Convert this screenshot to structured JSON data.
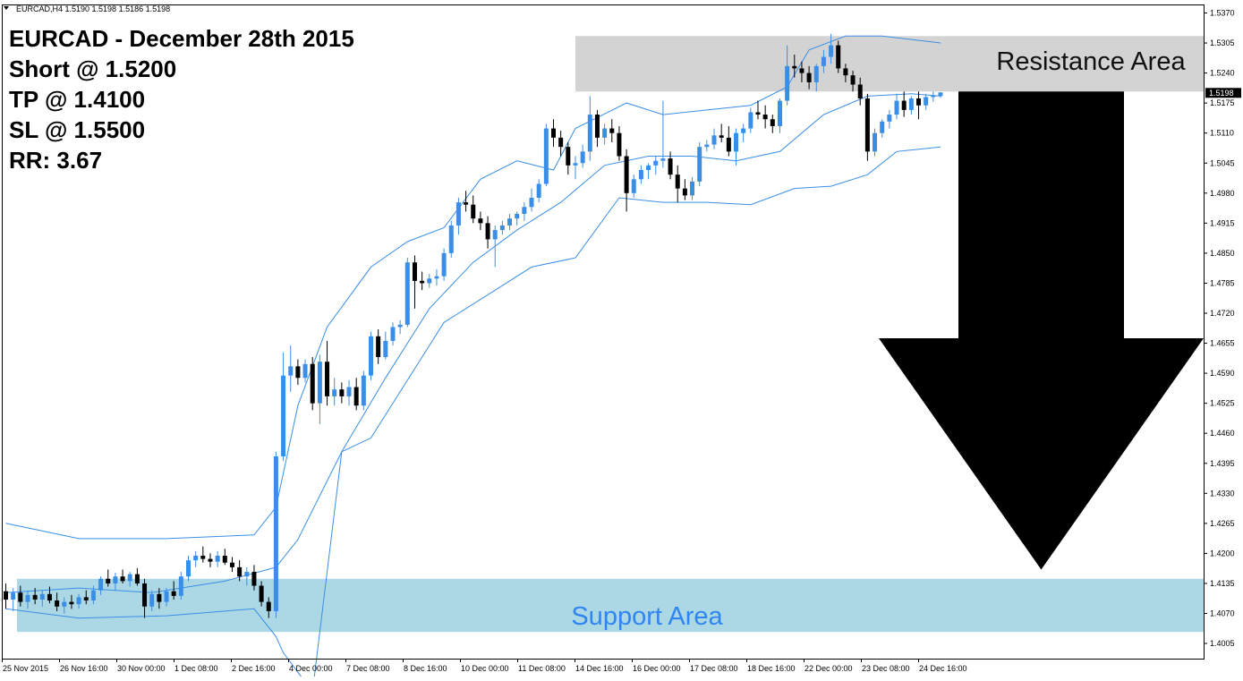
{
  "header": {
    "symbol_line": "EURCAD,H4  1.5190 1.5198 1.5186 1.5198",
    "dropdown_icon": "triangle-down-icon"
  },
  "annotation": {
    "lines": [
      "EURCAD - December 28th 2015",
      "Short @ 1.5200",
      "TP @ 1.4100",
      "SL @ 1.5500",
      "RR: 3.67"
    ]
  },
  "zones": {
    "resistance": {
      "label": "Resistance Area",
      "from": 1.52,
      "to": 1.532,
      "color": "#d3d3d3",
      "text_color": "#111111"
    },
    "support": {
      "label": "Support Area",
      "from": 1.403,
      "to": 1.4145,
      "color": "#acd8e6",
      "text_color": "#2f86f0"
    }
  },
  "arrow": {
    "icon": "down-arrow-icon",
    "from": 1.52,
    "to": 1.4165,
    "color": "#000000"
  },
  "colors": {
    "bull": "#3a8ee6",
    "bear": "#000000",
    "band": "#3a8ee6",
    "price_tag_bg": "#000000",
    "price_tag_fg": "#ffffff"
  },
  "price_axis": {
    "ticks": [
      "1.5370",
      "1.5305",
      "1.5240",
      "1.5175",
      "1.5110",
      "1.5045",
      "1.4980",
      "1.4915",
      "1.4850",
      "1.4785",
      "1.4720",
      "1.4655",
      "1.4590",
      "1.4525",
      "1.4460",
      "1.4395",
      "1.4330",
      "1.4265",
      "1.4200",
      "1.4135",
      "1.4070",
      "1.4005"
    ],
    "current_price": "1.5198"
  },
  "time_axis": {
    "labels": [
      "25 Nov 2015",
      "26 Nov 16:00",
      "30 Nov 00:00",
      "1 Dec 08:00",
      "2 Dec 16:00",
      "4 Dec 00:00",
      "7 Dec 08:00",
      "8 Dec 16:00",
      "10 Dec 00:00",
      "11 Dec 08:00",
      "14 Dec 16:00",
      "16 Dec 00:00",
      "17 Dec 08:00",
      "18 Dec 16:00",
      "22 Dec 00:00",
      "23 Dec 08:00",
      "24 Dec 16:00"
    ]
  },
  "chart_data": {
    "type": "candlestick",
    "title": "EURCAD,H4",
    "ylim": [
      1.3995,
      1.5395
    ],
    "y_ticks": [
      1.537,
      1.5305,
      1.524,
      1.5175,
      1.511,
      1.5045,
      1.498,
      1.4915,
      1.485,
      1.4785,
      1.472,
      1.4655,
      1.459,
      1.4525,
      1.446,
      1.4395,
      1.433,
      1.4265,
      1.42,
      1.4135,
      1.407,
      1.4005
    ],
    "x_labels": [
      "25 Nov 2015",
      "26 Nov 16:00",
      "30 Nov 00:00",
      "1 Dec 08:00",
      "2 Dec 16:00",
      "4 Dec 00:00",
      "7 Dec 08:00",
      "8 Dec 16:00",
      "10 Dec 00:00",
      "11 Dec 08:00",
      "14 Dec 16:00",
      "16 Dec 00:00",
      "17 Dec 08:00",
      "18 Dec 16:00",
      "22 Dec 00:00",
      "23 Dec 08:00",
      "24 Dec 16:00"
    ],
    "candles": [
      [
        1.4118,
        1.4135,
        1.408,
        1.41
      ],
      [
        1.41,
        1.4125,
        1.4075,
        1.4115
      ],
      [
        1.4115,
        1.413,
        1.4085,
        1.4095
      ],
      [
        1.4095,
        1.412,
        1.408,
        1.411
      ],
      [
        1.411,
        1.4125,
        1.409,
        1.41
      ],
      [
        1.41,
        1.412,
        1.4085,
        1.4112
      ],
      [
        1.4112,
        1.4128,
        1.4092,
        1.4098
      ],
      [
        1.4098,
        1.4115,
        1.4075,
        1.4085
      ],
      [
        1.4085,
        1.4105,
        1.407,
        1.4095
      ],
      [
        1.4095,
        1.411,
        1.408,
        1.409
      ],
      [
        1.409,
        1.4112,
        1.408,
        1.4105
      ],
      [
        1.4105,
        1.412,
        1.409,
        1.4098
      ],
      [
        1.4098,
        1.413,
        1.409,
        1.412
      ],
      [
        1.412,
        1.415,
        1.411,
        1.4145
      ],
      [
        1.4145,
        1.4165,
        1.4128,
        1.4135
      ],
      [
        1.4135,
        1.4158,
        1.412,
        1.415
      ],
      [
        1.415,
        1.4165,
        1.4135,
        1.414
      ],
      [
        1.414,
        1.416,
        1.4128,
        1.4155
      ],
      [
        1.4155,
        1.4168,
        1.413,
        1.4135
      ],
      [
        1.4135,
        1.4145,
        1.406,
        1.4085
      ],
      [
        1.4085,
        1.412,
        1.4075,
        1.4112
      ],
      [
        1.4112,
        1.4125,
        1.408,
        1.4095
      ],
      [
        1.4095,
        1.4125,
        1.4085,
        1.4118
      ],
      [
        1.4118,
        1.414,
        1.41,
        1.4108
      ],
      [
        1.4108,
        1.416,
        1.41,
        1.415
      ],
      [
        1.415,
        1.4195,
        1.414,
        1.4185
      ],
      [
        1.4185,
        1.4205,
        1.417,
        1.4195
      ],
      [
        1.4195,
        1.4215,
        1.418,
        1.4188
      ],
      [
        1.4188,
        1.42,
        1.417,
        1.4182
      ],
      [
        1.4182,
        1.4205,
        1.417,
        1.4195
      ],
      [
        1.4195,
        1.421,
        1.4175,
        1.418
      ],
      [
        1.418,
        1.4192,
        1.416,
        1.417
      ],
      [
        1.417,
        1.4185,
        1.414,
        1.415
      ],
      [
        1.415,
        1.417,
        1.413,
        1.416
      ],
      [
        1.416,
        1.4175,
        1.412,
        1.413
      ],
      [
        1.413,
        1.414,
        1.4085,
        1.4095
      ],
      [
        1.4095,
        1.4105,
        1.406,
        1.4075
      ],
      [
        1.4075,
        1.442,
        1.406,
        1.441
      ],
      [
        1.441,
        1.4635,
        1.44,
        1.4585
      ],
      [
        1.4585,
        1.465,
        1.455,
        1.4605
      ],
      [
        1.4605,
        1.462,
        1.4565,
        1.458
      ],
      [
        1.458,
        1.462,
        1.457,
        1.461
      ],
      [
        1.461,
        1.4625,
        1.451,
        1.4525
      ],
      [
        1.4525,
        1.463,
        1.448,
        1.4615
      ],
      [
        1.4615,
        1.466,
        1.452,
        1.454
      ],
      [
        1.454,
        1.458,
        1.452,
        1.4555
      ],
      [
        1.4555,
        1.457,
        1.4525,
        1.454
      ],
      [
        1.454,
        1.4575,
        1.452,
        1.456
      ],
      [
        1.456,
        1.458,
        1.451,
        1.452
      ],
      [
        1.452,
        1.4595,
        1.451,
        1.4585
      ],
      [
        1.4585,
        1.468,
        1.4575,
        1.467
      ],
      [
        1.467,
        1.4685,
        1.461,
        1.4625
      ],
      [
        1.4625,
        1.468,
        1.462,
        1.466
      ],
      [
        1.466,
        1.47,
        1.465,
        1.469
      ],
      [
        1.469,
        1.4705,
        1.4675,
        1.4695
      ],
      [
        1.4695,
        1.484,
        1.469,
        1.483
      ],
      [
        1.483,
        1.4845,
        1.473,
        1.479
      ],
      [
        1.479,
        1.481,
        1.477,
        1.4785
      ],
      [
        1.4785,
        1.4805,
        1.4775,
        1.4795
      ],
      [
        1.4795,
        1.4815,
        1.478,
        1.48
      ],
      [
        1.48,
        1.486,
        1.479,
        1.485
      ],
      [
        1.485,
        1.492,
        1.484,
        1.491
      ],
      [
        1.491,
        1.497,
        1.489,
        1.496
      ],
      [
        1.496,
        1.4985,
        1.494,
        1.4955
      ],
      [
        1.4955,
        1.4975,
        1.4915,
        1.4925
      ],
      [
        1.4925,
        1.494,
        1.49,
        1.4915
      ],
      [
        1.4915,
        1.493,
        1.486,
        1.488
      ],
      [
        1.488,
        1.491,
        1.482,
        1.49
      ],
      [
        1.49,
        1.492,
        1.489,
        1.491
      ],
      [
        1.491,
        1.4935,
        1.49,
        1.4925
      ],
      [
        1.4925,
        1.494,
        1.491,
        1.4935
      ],
      [
        1.4935,
        1.496,
        1.492,
        1.495
      ],
      [
        1.495,
        1.499,
        1.494,
        1.497
      ],
      [
        1.497,
        1.501,
        1.496,
        1.5
      ],
      [
        1.5,
        1.513,
        1.4995,
        1.512
      ],
      [
        1.512,
        1.514,
        1.508,
        1.51
      ],
      [
        1.51,
        1.5115,
        1.506,
        1.508
      ],
      [
        1.508,
        1.509,
        1.502,
        1.504
      ],
      [
        1.504,
        1.506,
        1.501,
        1.5045
      ],
      [
        1.5045,
        1.5085,
        1.5035,
        1.507
      ],
      [
        1.507,
        1.519,
        1.505,
        1.515
      ],
      [
        1.515,
        1.516,
        1.508,
        1.51
      ],
      [
        1.51,
        1.513,
        1.5085,
        1.512
      ],
      [
        1.512,
        1.514,
        1.509,
        1.511
      ],
      [
        1.511,
        1.5125,
        1.505,
        1.506
      ],
      [
        1.506,
        1.5075,
        1.494,
        1.498
      ],
      [
        1.498,
        1.502,
        1.497,
        1.501
      ],
      [
        1.501,
        1.504,
        1.5,
        1.503
      ],
      [
        1.503,
        1.5045,
        1.501,
        1.504
      ],
      [
        1.504,
        1.506,
        1.502,
        1.505
      ],
      [
        1.505,
        1.518,
        1.5035,
        1.5055
      ],
      [
        1.5055,
        1.507,
        1.501,
        1.502
      ],
      [
        1.502,
        1.504,
        1.496,
        1.499
      ],
      [
        1.499,
        1.501,
        1.4965,
        1.4975
      ],
      [
        1.4975,
        1.5015,
        1.4965,
        1.5005
      ],
      [
        1.5005,
        1.509,
        1.4995,
        1.508
      ],
      [
        1.508,
        1.5095,
        1.507,
        1.5085
      ],
      [
        1.5085,
        1.512,
        1.5075,
        1.5105
      ],
      [
        1.5105,
        1.513,
        1.509,
        1.51
      ],
      [
        1.51,
        1.5125,
        1.506,
        1.507
      ],
      [
        1.507,
        1.512,
        1.504,
        1.511
      ],
      [
        1.511,
        1.513,
        1.509,
        1.512
      ],
      [
        1.512,
        1.5165,
        1.511,
        1.5155
      ],
      [
        1.5155,
        1.518,
        1.514,
        1.515
      ],
      [
        1.515,
        1.517,
        1.512,
        1.514
      ],
      [
        1.514,
        1.515,
        1.511,
        1.5125
      ],
      [
        1.5125,
        1.5185,
        1.511,
        1.518
      ],
      [
        1.518,
        1.53,
        1.517,
        1.5255
      ],
      [
        1.5255,
        1.528,
        1.523,
        1.525
      ],
      [
        1.525,
        1.5265,
        1.522,
        1.524
      ],
      [
        1.524,
        1.5255,
        1.5205,
        1.522
      ],
      [
        1.522,
        1.526,
        1.52,
        1.5255
      ],
      [
        1.5255,
        1.529,
        1.524,
        1.5275
      ],
      [
        1.5275,
        1.5325,
        1.526,
        1.53
      ],
      [
        1.53,
        1.531,
        1.524,
        1.525
      ],
      [
        1.525,
        1.526,
        1.522,
        1.5235
      ],
      [
        1.5235,
        1.5245,
        1.52,
        1.5215
      ],
      [
        1.5215,
        1.523,
        1.517,
        1.5185
      ],
      [
        1.5185,
        1.5195,
        1.505,
        1.507
      ],
      [
        1.507,
        1.512,
        1.506,
        1.511
      ],
      [
        1.511,
        1.514,
        1.51,
        1.5135
      ],
      [
        1.5135,
        1.516,
        1.512,
        1.515
      ],
      [
        1.515,
        1.5195,
        1.514,
        1.518
      ],
      [
        1.518,
        1.52,
        1.5145,
        1.516
      ],
      [
        1.516,
        1.519,
        1.515,
        1.5185
      ],
      [
        1.5185,
        1.52,
        1.514,
        1.517
      ],
      [
        1.517,
        1.5195,
        1.516,
        1.5188
      ],
      [
        1.5188,
        1.52,
        1.5178,
        1.5192
      ],
      [
        1.519,
        1.5198,
        1.5186,
        1.5198
      ]
    ],
    "bollinger": {
      "upper_points": [
        [
          0,
          1.4265
        ],
        [
          10,
          1.4232
        ],
        [
          22,
          1.4232
        ],
        [
          34,
          1.424
        ],
        [
          37,
          1.43
        ],
        [
          40,
          1.452
        ],
        [
          44,
          1.469
        ],
        [
          50,
          1.482
        ],
        [
          55,
          1.4875
        ],
        [
          60,
          1.4905
        ],
        [
          65,
          1.501
        ],
        [
          70,
          1.505
        ],
        [
          75,
          1.503
        ],
        [
          78,
          1.512
        ],
        [
          85,
          1.5175
        ],
        [
          90,
          1.515
        ],
        [
          96,
          1.516
        ],
        [
          102,
          1.517
        ],
        [
          107,
          1.521
        ],
        [
          110,
          1.529
        ],
        [
          115,
          1.532
        ],
        [
          120,
          1.532
        ],
        [
          128,
          1.5305
        ]
      ],
      "middle_points": [
        [
          0,
          1.4115
        ],
        [
          10,
          1.4125
        ],
        [
          20,
          1.4115
        ],
        [
          30,
          1.414
        ],
        [
          37,
          1.417
        ],
        [
          40,
          1.423
        ],
        [
          46,
          1.442
        ],
        [
          52,
          1.458
        ],
        [
          58,
          1.473
        ],
        [
          64,
          1.483
        ],
        [
          70,
          1.49
        ],
        [
          76,
          1.496
        ],
        [
          82,
          1.504
        ],
        [
          88,
          1.506
        ],
        [
          94,
          1.506
        ],
        [
          100,
          1.505
        ],
        [
          106,
          1.507
        ],
        [
          112,
          1.515
        ],
        [
          118,
          1.519
        ],
        [
          124,
          1.5195
        ],
        [
          128,
          1.519
        ]
      ],
      "lower_points": [
        [
          0,
          1.408
        ],
        [
          10,
          1.406
        ],
        [
          22,
          1.4065
        ],
        [
          34,
          1.408
        ],
        [
          37,
          1.402
        ],
        [
          38,
          1.3985
        ],
        [
          42,
          1.39
        ],
        [
          46,
          1.442
        ],
        [
          50,
          1.445
        ],
        [
          56,
          1.46
        ],
        [
          60,
          1.47
        ],
        [
          66,
          1.476
        ],
        [
          72,
          1.482
        ],
        [
          78,
          1.484
        ],
        [
          84,
          1.497
        ],
        [
          90,
          1.496
        ],
        [
          96,
          1.496
        ],
        [
          102,
          1.4955
        ],
        [
          108,
          1.499
        ],
        [
          113,
          1.4995
        ],
        [
          118,
          1.502
        ],
        [
          122,
          1.507
        ],
        [
          128,
          1.508
        ]
      ]
    }
  }
}
